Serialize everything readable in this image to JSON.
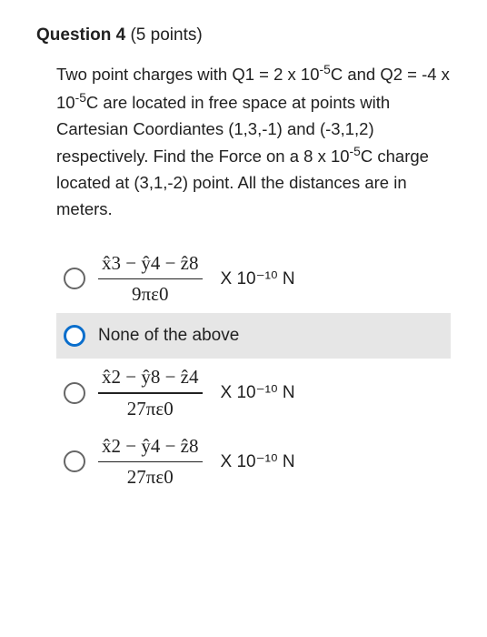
{
  "header": {
    "label": "Question 4",
    "points": "(5 points)"
  },
  "body": {
    "text_html": "Two point charges with Q1 = 2 x 10<sup>-5</sup>C and Q2 = -4 x 10<sup>-5</sup>C are located in free space at points with Cartesian Coordiantes (1,3,-1) and (-3,1,2) respectively. Find the Force on a 8 x 10<sup>-5</sup>C  charge located at (3,1,-2) point. All the distances are in meters."
  },
  "options": [
    {
      "type": "frac",
      "top": "x̂3 − ŷ4 − ẑ8",
      "bot": "9πε0",
      "unit": "X 10⁻¹⁰  N",
      "selected": false
    },
    {
      "type": "text",
      "label": "None of  the above",
      "selected": true,
      "shaded": true
    },
    {
      "type": "frac",
      "top": "x̂2 − ŷ8 − ẑ4",
      "bot": "27πε0",
      "unit": "X 10⁻¹⁰  N",
      "selected": false
    },
    {
      "type": "frac",
      "top": "x̂2 − ŷ4 − ẑ8",
      "bot": "27πε0",
      "unit": "X 10⁻¹⁰  N",
      "selected": false
    }
  ],
  "colors": {
    "shade": "#e6e6e6",
    "blue": "#0a6ecc",
    "text": "#212121"
  }
}
